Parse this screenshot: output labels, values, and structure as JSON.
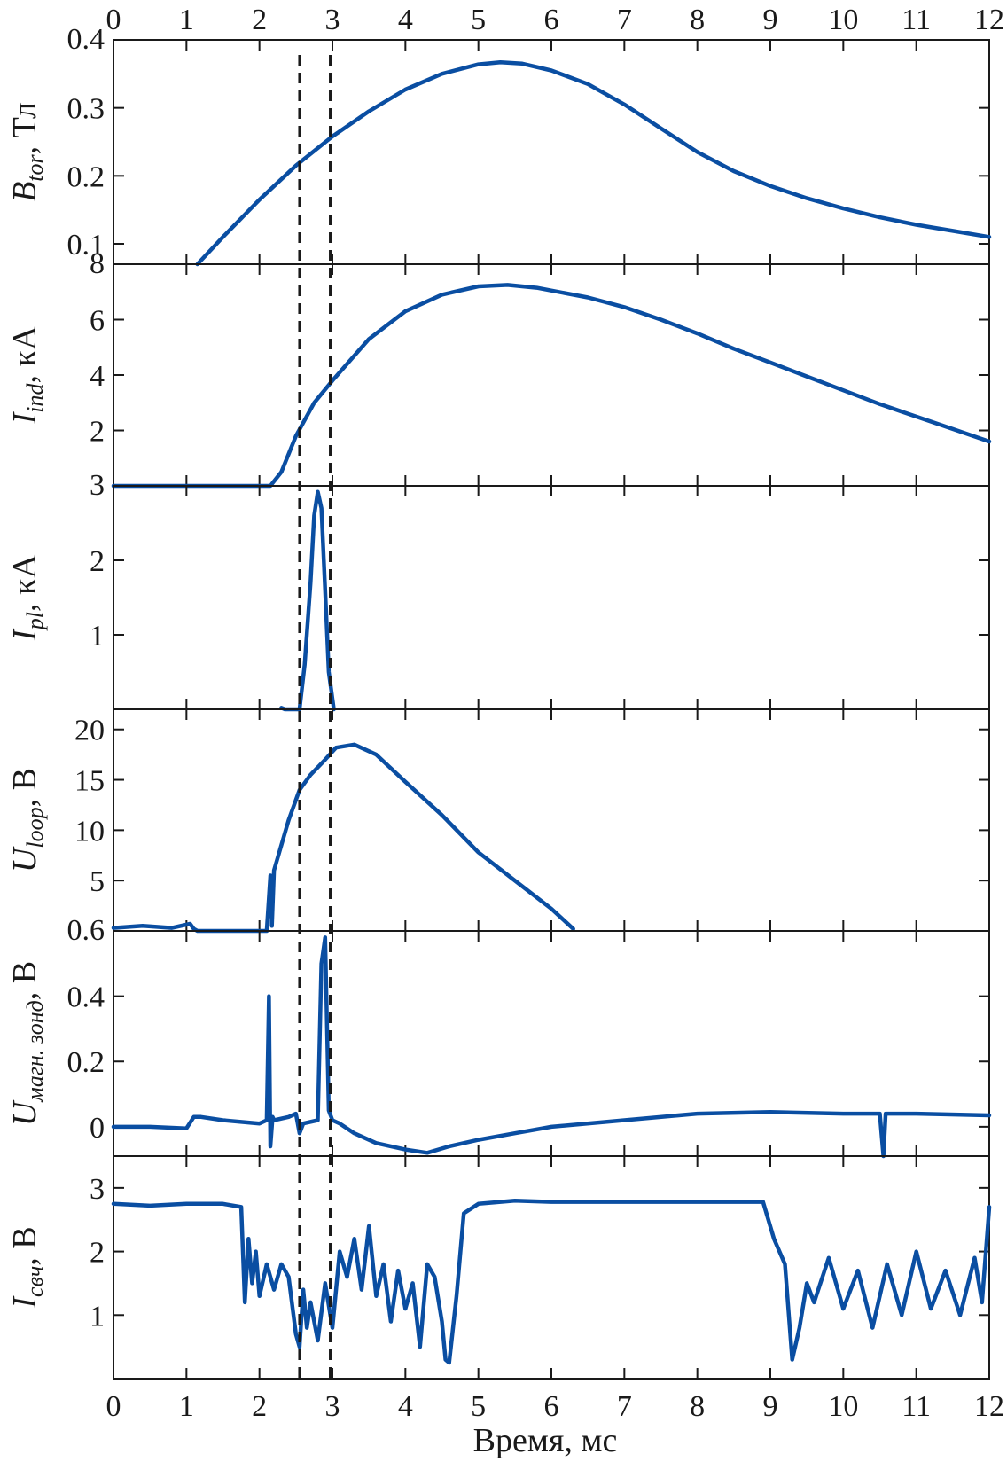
{
  "chart_data": {
    "type": "line",
    "xlabel": "Время, мс",
    "xlim": [
      0,
      12
    ],
    "xticks": [
      "0",
      "1",
      "2",
      "3",
      "4",
      "5",
      "6",
      "7",
      "8",
      "9",
      "10",
      "11",
      "12"
    ],
    "marker_lines_x": [
      2.55,
      2.97
    ],
    "line_color": "#0a4ea2",
    "panels": [
      {
        "id": "btor",
        "ylabel_main": "B",
        "ylabel_sub": "tor",
        "ylabel_unit": ", Тл",
        "ylim": [
          0.07,
          0.4
        ],
        "yticks": [
          {
            "value": 0.4,
            "label": "0.4"
          },
          {
            "value": 0.3,
            "label": "0.3"
          },
          {
            "value": 0.2,
            "label": "0.2"
          },
          {
            "value": 0.1,
            "label": "0.1"
          }
        ],
        "series": {
          "x": [
            1.15,
            1.5,
            2,
            2.5,
            3,
            3.5,
            4,
            4.5,
            5,
            5.3,
            5.6,
            6,
            6.5,
            7,
            7.5,
            8,
            8.5,
            9,
            9.5,
            10,
            10.5,
            11,
            11.5,
            12
          ],
          "y": [
            0.07,
            0.11,
            0.165,
            0.215,
            0.258,
            0.295,
            0.327,
            0.35,
            0.364,
            0.367,
            0.365,
            0.355,
            0.335,
            0.305,
            0.27,
            0.235,
            0.207,
            0.185,
            0.167,
            0.152,
            0.139,
            0.128,
            0.119,
            0.11
          ]
        }
      },
      {
        "id": "iind",
        "ylabel_main": "I",
        "ylabel_sub": "ind",
        "ylabel_unit": ", кА",
        "ylim": [
          0,
          8
        ],
        "yticks": [
          {
            "value": 8,
            "label": "8"
          },
          {
            "value": 6,
            "label": "6"
          },
          {
            "value": 4,
            "label": "4"
          },
          {
            "value": 2,
            "label": "2"
          }
        ],
        "series": {
          "x": [
            0,
            2.15,
            2.3,
            2.5,
            2.75,
            3,
            3.5,
            4,
            4.5,
            5,
            5.4,
            5.8,
            6.5,
            7,
            7.5,
            8,
            8.5,
            9,
            9.5,
            10,
            10.5,
            11,
            11.5,
            12
          ],
          "y": [
            0,
            0,
            0.5,
            1.8,
            3,
            3.8,
            5.3,
            6.3,
            6.9,
            7.2,
            7.25,
            7.15,
            6.8,
            6.45,
            6,
            5.5,
            4.95,
            4.45,
            3.95,
            3.45,
            2.95,
            2.5,
            2.05,
            1.6
          ]
        }
      },
      {
        "id": "ipl",
        "ylabel_main": "I",
        "ylabel_sub": "pl",
        "ylabel_unit": ", кА",
        "ylim": [
          0,
          3
        ],
        "yticks": [
          {
            "value": 3,
            "label": "3"
          },
          {
            "value": 2,
            "label": "2"
          },
          {
            "value": 1,
            "label": "1"
          }
        ],
        "series": {
          "x": [
            2.3,
            2.35,
            2.55,
            2.62,
            2.7,
            2.75,
            2.8,
            2.85,
            2.9,
            2.95,
            3.02
          ],
          "y": [
            0.02,
            0,
            0,
            0.6,
            1.7,
            2.6,
            2.92,
            2.7,
            1.6,
            0.5,
            0
          ]
        }
      },
      {
        "id": "uloop",
        "ylabel_main": "U",
        "ylabel_sub": "loop",
        "ylabel_unit": ", В",
        "ylim": [
          0,
          22
        ],
        "yticks": [
          {
            "value": 20,
            "label": "20"
          },
          {
            "value": 15,
            "label": "15"
          },
          {
            "value": 10,
            "label": "10"
          },
          {
            "value": 5,
            "label": "5"
          }
        ],
        "series": {
          "x": [
            0,
            0.4,
            0.8,
            1.05,
            1.1,
            1.15,
            2.1,
            2.15,
            2.17,
            2.2,
            2.4,
            2.55,
            2.7,
            2.9,
            3.05,
            3.3,
            3.6,
            4,
            4.5,
            5,
            5.5,
            6,
            6.3
          ],
          "y": [
            0.3,
            0.5,
            0.3,
            0.7,
            0.2,
            0,
            0,
            5.5,
            0.5,
            6,
            11,
            14,
            15.5,
            17,
            18.2,
            18.5,
            17.5,
            14.8,
            11.5,
            7.8,
            5,
            2.2,
            0.2
          ]
        }
      },
      {
        "id": "umag",
        "ylabel_main": "U",
        "ylabel_sub": "магн. зонд",
        "ylabel_unit": ", В",
        "ylim": [
          -0.09,
          0.6
        ],
        "yticks": [
          {
            "value": 0.6,
            "label": "0.6"
          },
          {
            "value": 0.4,
            "label": "0.4"
          },
          {
            "value": 0.2,
            "label": "0.2"
          },
          {
            "value": 0,
            "label": "0"
          }
        ],
        "series": {
          "x": [
            0,
            0.5,
            1,
            1.1,
            1.2,
            1.5,
            2,
            2.1,
            2.13,
            2.15,
            2.18,
            2.2,
            2.4,
            2.5,
            2.55,
            2.6,
            2.8,
            2.85,
            2.9,
            2.95,
            3,
            3.1,
            3.3,
            3.6,
            4,
            4.3,
            4.6,
            5,
            5.5,
            6,
            7,
            8,
            9,
            10,
            10.5,
            10.55,
            10.58,
            10.62,
            11,
            12
          ],
          "y": [
            0,
            0,
            -0.005,
            0.03,
            0.03,
            0.02,
            0.01,
            0.02,
            0.4,
            -0.06,
            0.03,
            0.02,
            0.03,
            0.04,
            -0.02,
            0.01,
            0.02,
            0.5,
            0.58,
            0.05,
            0.02,
            0.01,
            -0.02,
            -0.05,
            -0.07,
            -0.08,
            -0.06,
            -0.04,
            -0.02,
            0,
            0.02,
            0.04,
            0.045,
            0.04,
            0.04,
            -0.09,
            0.04,
            0.04,
            0.04,
            0.035
          ]
        }
      },
      {
        "id": "isvch",
        "ylabel_main": "I",
        "ylabel_sub": "свч",
        "ylabel_unit": ", В",
        "ylim": [
          0,
          3.5
        ],
        "yticks": [
          {
            "value": 3,
            "label": "3"
          },
          {
            "value": 2,
            "label": "2"
          },
          {
            "value": 1,
            "label": "1"
          }
        ],
        "series": {
          "x": [
            0,
            0.5,
            1,
            1.5,
            1.75,
            1.8,
            1.85,
            1.9,
            1.95,
            2,
            2.1,
            2.2,
            2.3,
            2.4,
            2.5,
            2.55,
            2.6,
            2.65,
            2.7,
            2.8,
            2.9,
            3,
            3.1,
            3.2,
            3.3,
            3.4,
            3.5,
            3.6,
            3.7,
            3.8,
            3.9,
            4,
            4.1,
            4.2,
            4.3,
            4.4,
            4.5,
            4.55,
            4.6,
            4.7,
            4.8,
            5,
            5.5,
            6,
            7,
            8,
            8.9,
            9.05,
            9.2,
            9.3,
            9.4,
            9.5,
            9.6,
            9.8,
            10,
            10.2,
            10.4,
            10.6,
            10.8,
            11,
            11.2,
            11.4,
            11.6,
            11.8,
            11.9,
            12
          ],
          "y": [
            2.75,
            2.72,
            2.75,
            2.75,
            2.7,
            1.2,
            2.2,
            1.5,
            2,
            1.3,
            1.8,
            1.4,
            1.8,
            1.6,
            0.7,
            0.5,
            1.4,
            0.8,
            1.2,
            0.6,
            1.5,
            0.8,
            2,
            1.6,
            2.2,
            1.4,
            2.4,
            1.3,
            1.8,
            0.9,
            1.7,
            1.1,
            1.5,
            0.5,
            1.8,
            1.6,
            0.9,
            0.3,
            0.25,
            1.3,
            2.6,
            2.75,
            2.8,
            2.78,
            2.78,
            2.78,
            2.78,
            2.2,
            1.8,
            0.3,
            0.8,
            1.5,
            1.2,
            1.9,
            1.1,
            1.7,
            0.8,
            1.8,
            1.0,
            2.0,
            1.1,
            1.7,
            1.0,
            1.9,
            1.2,
            2.7
          ]
        }
      }
    ]
  }
}
